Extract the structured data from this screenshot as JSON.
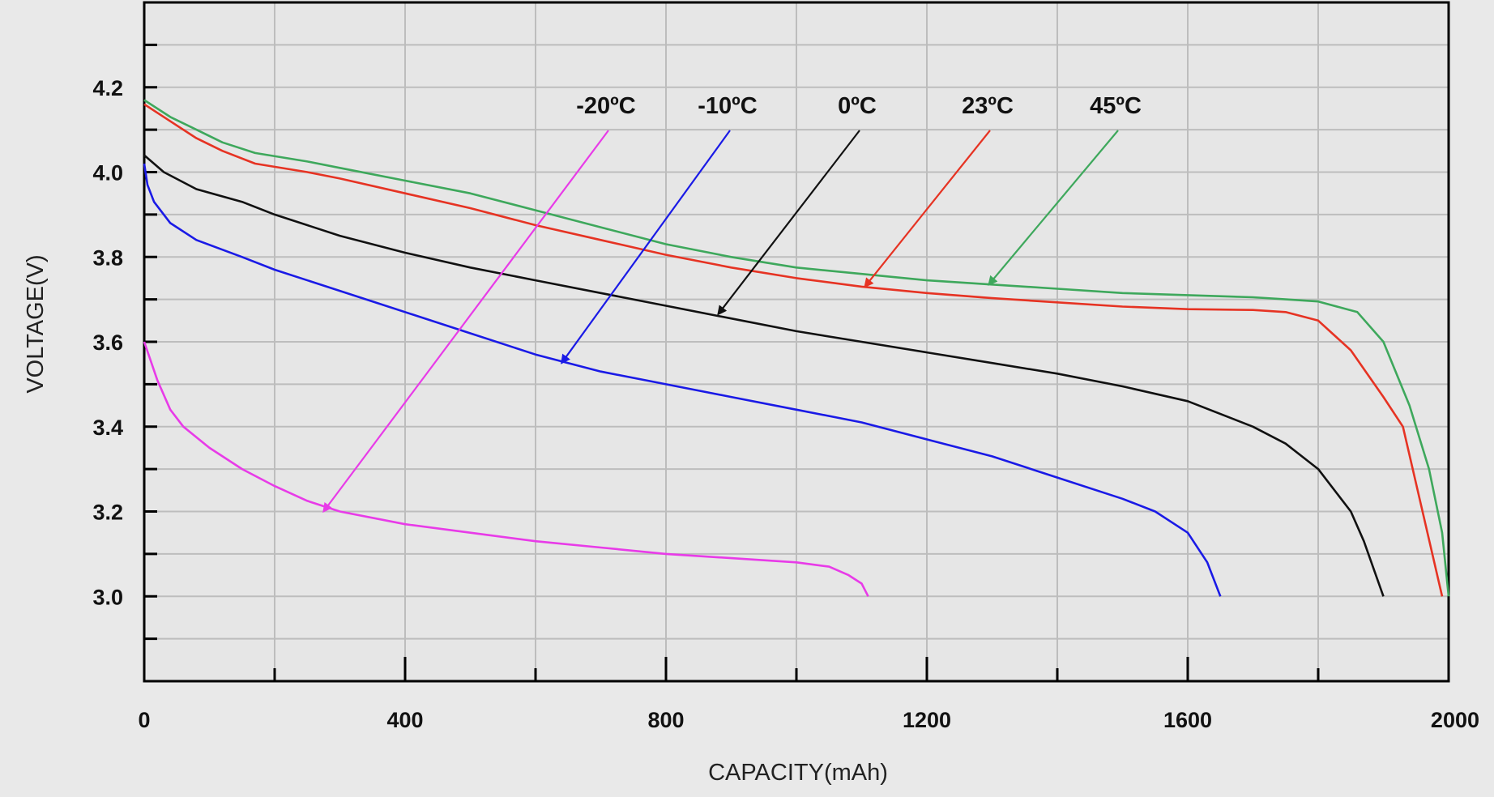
{
  "chart_data": {
    "type": "line",
    "title": "",
    "xlabel": "CAPACITY(mAh)",
    "ylabel": "VOLTAGE(V)",
    "xlim": [
      0,
      2000
    ],
    "ylim": [
      2.8,
      4.4
    ],
    "grid": true,
    "x_ticks": [
      "0",
      "400",
      "800",
      "1200",
      "1600",
      "2000"
    ],
    "y_ticks": [
      "3.0",
      "3.2",
      "3.4",
      "3.6",
      "3.8",
      "4.0",
      "4.2"
    ],
    "series": [
      {
        "name": "-20ºC",
        "color": "#e83be8",
        "arrow_to": [
          275,
          3.2
        ],
        "points": [
          [
            0,
            3.6
          ],
          [
            20,
            3.51
          ],
          [
            40,
            3.44
          ],
          [
            60,
            3.4
          ],
          [
            100,
            3.35
          ],
          [
            150,
            3.3
          ],
          [
            200,
            3.26
          ],
          [
            250,
            3.225
          ],
          [
            300,
            3.2
          ],
          [
            400,
            3.17
          ],
          [
            500,
            3.15
          ],
          [
            600,
            3.13
          ],
          [
            700,
            3.115
          ],
          [
            800,
            3.1
          ],
          [
            900,
            3.09
          ],
          [
            1000,
            3.08
          ],
          [
            1050,
            3.07
          ],
          [
            1080,
            3.05
          ],
          [
            1100,
            3.03
          ],
          [
            1110,
            3.0
          ]
        ]
      },
      {
        "name": "-10ºC",
        "color": "#1a1ae6",
        "arrow_to": [
          640,
          3.55
        ],
        "points": [
          [
            0,
            4.02
          ],
          [
            5,
            3.97
          ],
          [
            15,
            3.93
          ],
          [
            40,
            3.88
          ],
          [
            80,
            3.84
          ],
          [
            150,
            3.8
          ],
          [
            200,
            3.77
          ],
          [
            300,
            3.72
          ],
          [
            400,
            3.67
          ],
          [
            500,
            3.62
          ],
          [
            600,
            3.57
          ],
          [
            700,
            3.53
          ],
          [
            800,
            3.5
          ],
          [
            900,
            3.47
          ],
          [
            1000,
            3.44
          ],
          [
            1100,
            3.41
          ],
          [
            1200,
            3.37
          ],
          [
            1300,
            3.33
          ],
          [
            1400,
            3.28
          ],
          [
            1500,
            3.23
          ],
          [
            1550,
            3.2
          ],
          [
            1600,
            3.15
          ],
          [
            1630,
            3.08
          ],
          [
            1650,
            3.0
          ]
        ]
      },
      {
        "name": "0ºC",
        "color": "#111111",
        "arrow_to": [
          880,
          3.665
        ],
        "points": [
          [
            0,
            4.04
          ],
          [
            30,
            4.0
          ],
          [
            80,
            3.96
          ],
          [
            150,
            3.93
          ],
          [
            200,
            3.9
          ],
          [
            300,
            3.85
          ],
          [
            400,
            3.81
          ],
          [
            500,
            3.775
          ],
          [
            600,
            3.745
          ],
          [
            700,
            3.715
          ],
          [
            800,
            3.685
          ],
          [
            900,
            3.655
          ],
          [
            1000,
            3.625
          ],
          [
            1100,
            3.6
          ],
          [
            1200,
            3.575
          ],
          [
            1300,
            3.55
          ],
          [
            1400,
            3.525
          ],
          [
            1500,
            3.495
          ],
          [
            1600,
            3.46
          ],
          [
            1700,
            3.4
          ],
          [
            1750,
            3.36
          ],
          [
            1800,
            3.3
          ],
          [
            1850,
            3.2
          ],
          [
            1870,
            3.13
          ],
          [
            1900,
            3.0
          ]
        ]
      },
      {
        "name": "23ºC",
        "color": "#e63323",
        "arrow_to": [
          1105,
          3.73
        ],
        "points": [
          [
            0,
            4.16
          ],
          [
            40,
            4.12
          ],
          [
            80,
            4.08
          ],
          [
            120,
            4.05
          ],
          [
            170,
            4.02
          ],
          [
            250,
            4.0
          ],
          [
            300,
            3.985
          ],
          [
            400,
            3.95
          ],
          [
            500,
            3.915
          ],
          [
            600,
            3.875
          ],
          [
            700,
            3.84
          ],
          [
            800,
            3.805
          ],
          [
            900,
            3.775
          ],
          [
            1000,
            3.75
          ],
          [
            1100,
            3.73
          ],
          [
            1200,
            3.715
          ],
          [
            1300,
            3.703
          ],
          [
            1400,
            3.693
          ],
          [
            1500,
            3.683
          ],
          [
            1600,
            3.677
          ],
          [
            1700,
            3.675
          ],
          [
            1750,
            3.67
          ],
          [
            1800,
            3.65
          ],
          [
            1850,
            3.58
          ],
          [
            1900,
            3.47
          ],
          [
            1930,
            3.4
          ],
          [
            1960,
            3.2
          ],
          [
            1990,
            3.0
          ]
        ]
      },
      {
        "name": "45ºC",
        "color": "#3ea85c",
        "arrow_to": [
          1295,
          3.735
        ],
        "points": [
          [
            0,
            4.17
          ],
          [
            40,
            4.13
          ],
          [
            80,
            4.1
          ],
          [
            120,
            4.07
          ],
          [
            170,
            4.045
          ],
          [
            250,
            4.025
          ],
          [
            300,
            4.01
          ],
          [
            400,
            3.98
          ],
          [
            500,
            3.95
          ],
          [
            600,
            3.91
          ],
          [
            700,
            3.87
          ],
          [
            800,
            3.83
          ],
          [
            900,
            3.8
          ],
          [
            1000,
            3.775
          ],
          [
            1100,
            3.76
          ],
          [
            1200,
            3.745
          ],
          [
            1300,
            3.735
          ],
          [
            1400,
            3.725
          ],
          [
            1500,
            3.715
          ],
          [
            1600,
            3.71
          ],
          [
            1700,
            3.705
          ],
          [
            1750,
            3.7
          ],
          [
            1800,
            3.695
          ],
          [
            1860,
            3.67
          ],
          [
            1900,
            3.6
          ],
          [
            1940,
            3.45
          ],
          [
            1970,
            3.3
          ],
          [
            1990,
            3.15
          ],
          [
            2000,
            3.0
          ]
        ]
      }
    ]
  }
}
